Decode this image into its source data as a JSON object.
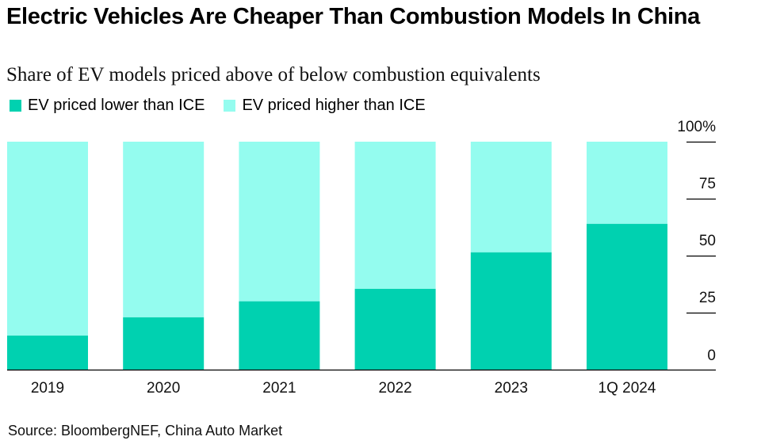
{
  "header": {
    "title": "Electric Vehicles Are Cheaper Than Combustion Models In China",
    "subtitle": "Share of EV models priced above of below combustion equivalents"
  },
  "legend": {
    "items": [
      {
        "label": "EV priced lower than ICE",
        "color": "#00d1b0"
      },
      {
        "label": "EV priced higher than ICE",
        "color": "#94fcef"
      }
    ]
  },
  "footer": {
    "source": "Source: BloombergNEF, China Auto Market"
  },
  "chart_data": {
    "type": "bar",
    "stacked": true,
    "title": "Electric Vehicles Are Cheaper Than Combustion Models In China",
    "subtitle": "Share of EV models priced above of below combustion equivalents",
    "xlabel": "",
    "ylabel": "",
    "ylim": [
      0,
      100
    ],
    "y_ticks": [
      0,
      25,
      50,
      75,
      100
    ],
    "y_tick_labels": [
      "0",
      "25",
      "50",
      "75",
      "100%"
    ],
    "y_axis_position": "right",
    "grid": false,
    "legend_position": "top-left",
    "categories": [
      "2019",
      "2020",
      "2021",
      "2022",
      "2023",
      "1Q 2024"
    ],
    "series": [
      {
        "name": "EV priced lower than ICE",
        "color": "#00d1b0",
        "values": [
          15,
          23,
          30,
          35.5,
          51.5,
          64
        ]
      },
      {
        "name": "EV priced higher than ICE",
        "color": "#94fcef",
        "values": [
          85,
          77,
          70,
          64.5,
          48.5,
          36
        ]
      }
    ]
  }
}
